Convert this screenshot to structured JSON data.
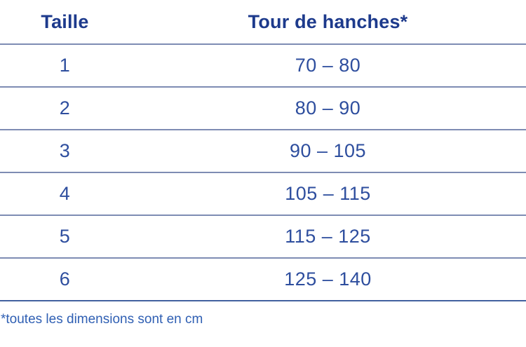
{
  "table": {
    "columns": [
      {
        "label": "Taille"
      },
      {
        "label": "Tour de hanches*"
      }
    ],
    "rows": [
      {
        "taille": "1",
        "tour_de_hanches": "70 – 80"
      },
      {
        "taille": "2",
        "tour_de_hanches": "80 – 90"
      },
      {
        "taille": "3",
        "tour_de_hanches": "90 – 105"
      },
      {
        "taille": "4",
        "tour_de_hanches": "105 – 115"
      },
      {
        "taille": "5",
        "tour_de_hanches": "115 – 125"
      },
      {
        "taille": "6",
        "tour_de_hanches": "125 – 140"
      }
    ]
  },
  "footnote": "*toutes les dimensions sont en cm",
  "colors": {
    "header_text": "#1d3a8c",
    "body_text": "#2e4e9e",
    "footnote_text": "#2f5fb3",
    "divider": "#7e8cb3",
    "bottom_border": "#41609f",
    "background": "#ffffff"
  }
}
